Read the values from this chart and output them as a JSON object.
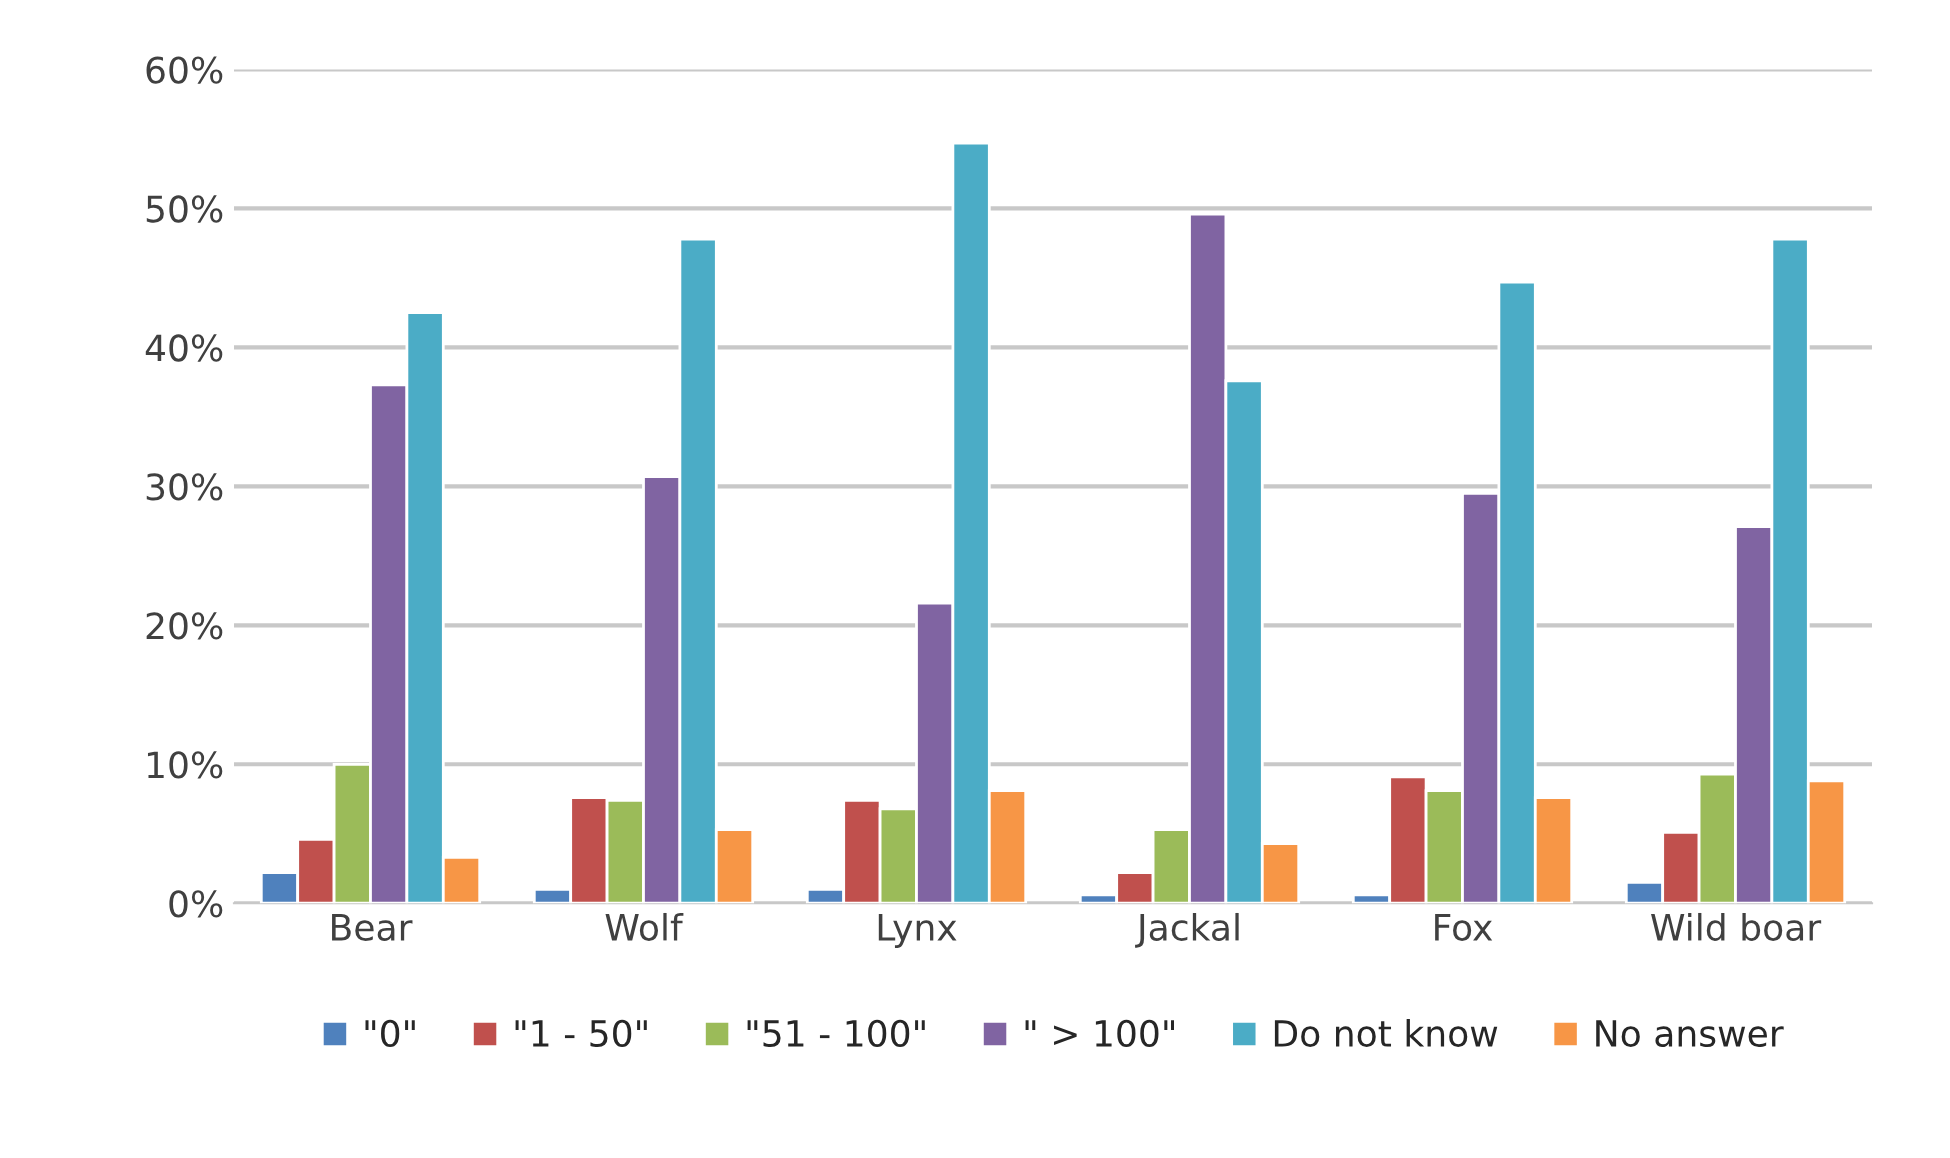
{
  "chart_data": {
    "type": "bar",
    "categories": [
      "Bear",
      "Wolf",
      "Lynx",
      "Jackal",
      "Fox",
      "Wild boar"
    ],
    "series": [
      {
        "name": "\"0\"",
        "color": "#4f81bd",
        "values": [
          2.2,
          1.0,
          1.0,
          0.6,
          0.6,
          1.5
        ]
      },
      {
        "name": "\"1 - 50\"",
        "color": "#c0504d",
        "values": [
          4.6,
          7.6,
          7.4,
          2.2,
          9.1,
          5.1
        ]
      },
      {
        "name": "\"51 - 100\"",
        "color": "#9bbb59",
        "values": [
          10.0,
          7.4,
          6.8,
          5.3,
          8.1,
          9.3
        ]
      },
      {
        "name": "\" > 100\"",
        "color": "#8064a2",
        "values": [
          37.3,
          30.7,
          21.6,
          49.6,
          29.5,
          27.1
        ]
      },
      {
        "name": "Do not know",
        "color": "#4bacc6",
        "values": [
          42.5,
          47.8,
          54.7,
          37.6,
          44.7,
          47.8
        ]
      },
      {
        "name": "No answer",
        "color": "#f79646",
        "values": [
          3.3,
          5.3,
          8.1,
          4.3,
          7.6,
          8.8
        ]
      }
    ],
    "ylim": [
      0,
      60
    ],
    "yticks": [
      {
        "value": 0,
        "label": "0%"
      },
      {
        "value": 10,
        "label": "10%"
      },
      {
        "value": 20,
        "label": "20%"
      },
      {
        "value": 30,
        "label": "30%"
      },
      {
        "value": 40,
        "label": "40%"
      },
      {
        "value": 50,
        "label": "50%"
      },
      {
        "value": 60,
        "label": "60%"
      }
    ],
    "grid": "y",
    "legend": "bottom"
  }
}
